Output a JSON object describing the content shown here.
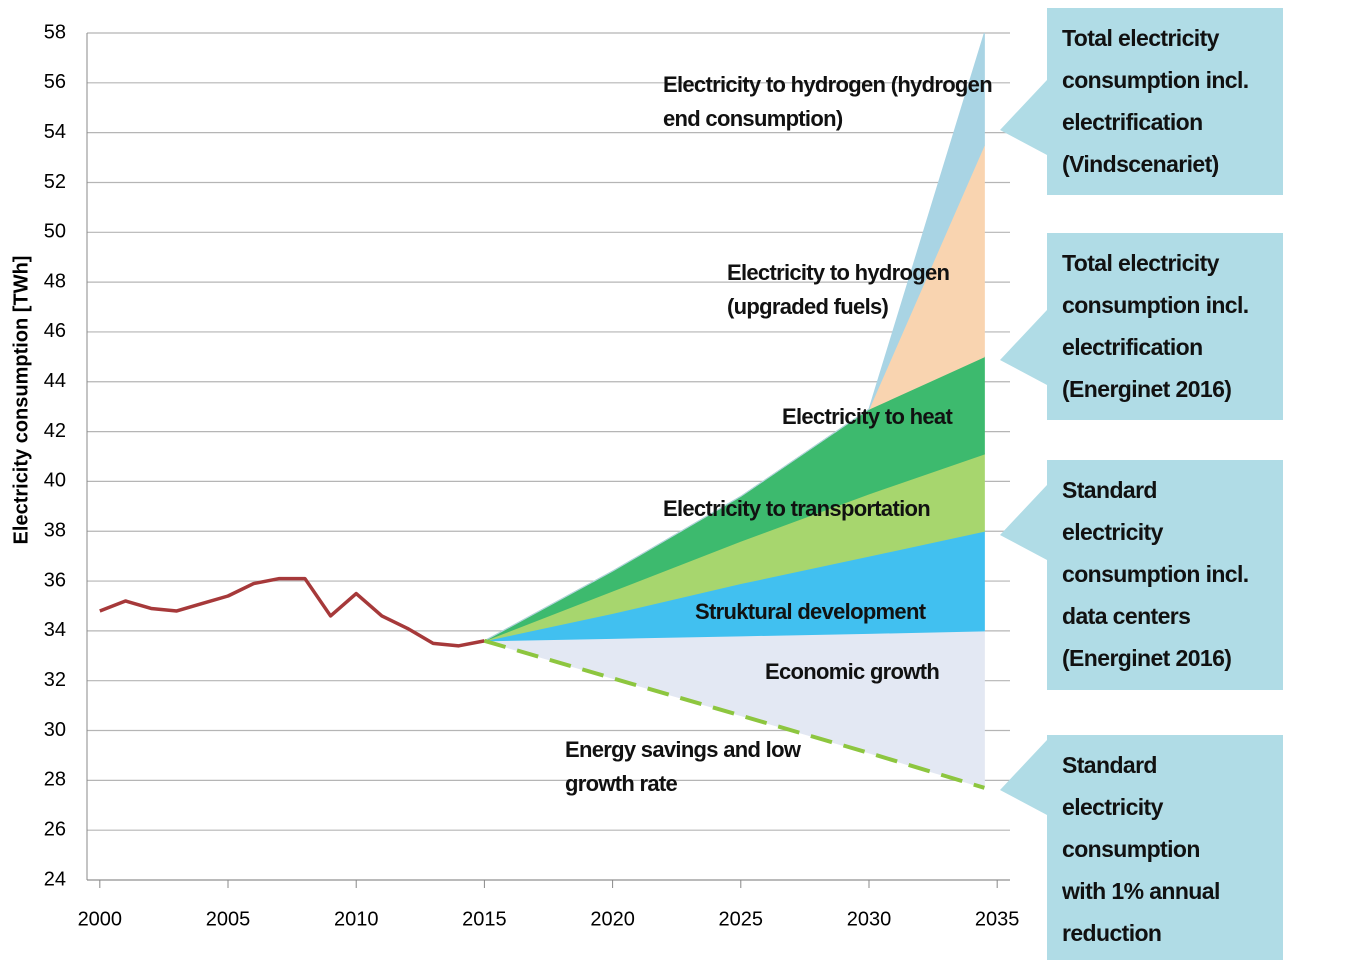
{
  "chart_data": {
    "type": "area",
    "y_label": "Electricity consumption [TWh]",
    "xlim": [
      1999.5,
      2035.5
    ],
    "xticks": [
      2000,
      2005,
      2010,
      2015,
      2020,
      2025,
      2030,
      2035
    ],
    "ylim": [
      24,
      58
    ],
    "yticks": [
      24,
      26,
      28,
      30,
      32,
      34,
      36,
      38,
      40,
      42,
      44,
      46,
      48,
      50,
      52,
      54,
      56,
      58
    ],
    "grid": true,
    "x": [
      2015,
      2020,
      2025,
      2030,
      2034.5
    ],
    "series": [
      {
        "type": "line",
        "color": "#a6393a",
        "x": [
          2000,
          2001,
          2002,
          2003,
          2004,
          2005,
          2006,
          2007,
          2008,
          2009,
          2010,
          2011,
          2012,
          2013,
          2014,
          2015
        ],
        "values": [
          34.8,
          35.2,
          34.9,
          34.8,
          35.1,
          35.4,
          35.9,
          36.1,
          36.1,
          34.6,
          35.5,
          34.6,
          34.1,
          33.5,
          33.4,
          33.6
        ]
      },
      {
        "name": "Energy savings and low growth rate",
        "type": "line",
        "dashed": true,
        "color": "#8dc63f",
        "values": [
          33.6,
          32.1,
          30.6,
          29.1,
          27.7
        ]
      },
      {
        "name": "Economic growth",
        "type": "stacked",
        "color": "#e3e8f3",
        "values": [
          0,
          1.6,
          3.2,
          4.8,
          6.3
        ]
      },
      {
        "name": "Struktural development",
        "type": "stacked",
        "color": "#41c0f0",
        "values": [
          0,
          1.0,
          2.1,
          3.1,
          4.0
        ]
      },
      {
        "name": "Electricity to transportation",
        "type": "stacked",
        "color": "#a7d66e",
        "values": [
          0,
          0.9,
          1.7,
          2.5,
          3.1
        ]
      },
      {
        "name": "Electricity to heat",
        "type": "stacked",
        "color": "#3dba6e",
        "values": [
          0,
          0.8,
          1.8,
          3.4,
          3.9
        ]
      },
      {
        "name": "Electricity to hydrogen (upgraded fuels)",
        "type": "stacked",
        "color": "#f9d4b0",
        "values": [
          0,
          0,
          0,
          0,
          8.5
        ]
      },
      {
        "name": "Electricity to hydrogen (hydrogen end consumption)",
        "type": "stacked",
        "color": "#a9d4e4",
        "values": [
          0,
          0,
          0,
          0,
          4.5
        ]
      }
    ],
    "callouts": [
      {
        "lines": [
          "Total electricity",
          "consumption incl.",
          "electrification",
          "(Vindscenariet)"
        ]
      },
      {
        "lines": [
          "Total electricity",
          "consumption incl.",
          "electrification",
          "(Energinet 2016)"
        ]
      },
      {
        "lines": [
          "Standard",
          "electricity",
          "consumption incl.",
          "data centers",
          "(Energinet 2016)"
        ]
      },
      {
        "lines": [
          "Standard",
          "electricity",
          "consumption",
          "with 1% annual",
          "reduction"
        ]
      }
    ]
  }
}
